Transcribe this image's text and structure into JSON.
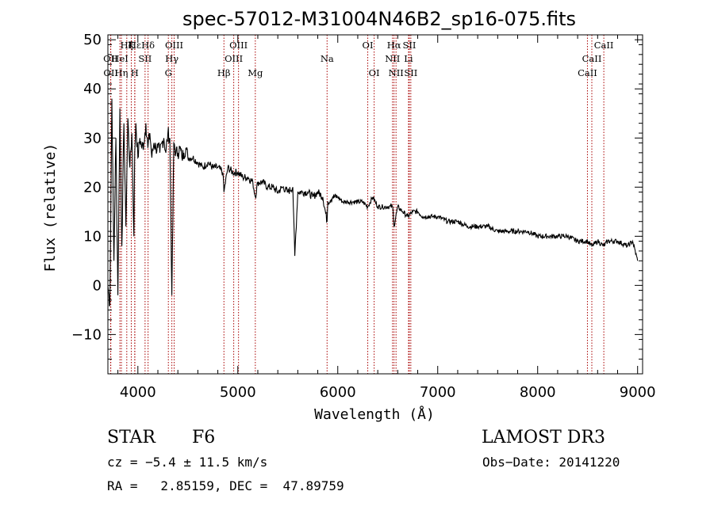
{
  "chart_data": {
    "type": "line",
    "title": "spec-57012-M31004N46B2_sp16-075.fits",
    "xlabel": "Wavelength (Å)",
    "ylabel": "Flux (relative)",
    "xlim": [
      3700,
      9050
    ],
    "ylim": [
      -18,
      51
    ],
    "xticks": [
      4000,
      5000,
      6000,
      7000,
      8000,
      9000
    ],
    "xtick_labels": [
      "4000",
      "5000",
      "6000",
      "7000",
      "8000",
      "9000"
    ],
    "yticks": [
      -10,
      0,
      10,
      20,
      30,
      40,
      50
    ],
    "ytick_labels": [
      "−10",
      "0",
      "10",
      "20",
      "30",
      "40",
      "50"
    ],
    "series": [
      {
        "name": "flux",
        "x": [
          3700,
          3720,
          3740,
          3760,
          3780,
          3800,
          3820,
          3840,
          3860,
          3880,
          3900,
          3920,
          3940,
          3960,
          3968,
          3980,
          4000,
          4020,
          4040,
          4060,
          4080,
          4100,
          4120,
          4140,
          4160,
          4180,
          4200,
          4220,
          4240,
          4260,
          4280,
          4300,
          4320,
          4340,
          4360,
          4380,
          4400,
          4420,
          4440,
          4460,
          4480,
          4500,
          4550,
          4600,
          4650,
          4700,
          4750,
          4800,
          4850,
          4861,
          4900,
          4950,
          5000,
          5050,
          5100,
          5150,
          5175,
          5200,
          5250,
          5300,
          5350,
          5400,
          5450,
          5500,
          5550,
          5570,
          5600,
          5650,
          5700,
          5750,
          5800,
          5850,
          5893,
          5900,
          5950,
          6000,
          6050,
          6100,
          6150,
          6200,
          6250,
          6300,
          6350,
          6400,
          6450,
          6500,
          6550,
          6563,
          6600,
          6650,
          6700,
          6750,
          6800,
          6850,
          6900,
          6950,
          7000,
          7100,
          7200,
          7300,
          7400,
          7500,
          7600,
          7700,
          7800,
          7900,
          8000,
          8100,
          8200,
          8300,
          8400,
          8500,
          8542,
          8600,
          8662,
          8700,
          8800,
          8900,
          8950,
          9000
        ],
        "y": [
          0,
          -4,
          38,
          5,
          30,
          -2,
          36,
          8,
          33,
          12,
          34,
          24,
          31,
          10,
          27,
          33,
          26,
          30,
          28,
          29,
          33,
          28,
          31,
          26,
          29,
          28,
          28,
          27,
          29,
          30,
          27,
          31,
          30,
          -2,
          29,
          27,
          27,
          28,
          26,
          27,
          28,
          26,
          26,
          25,
          24,
          25,
          24,
          24,
          23,
          19,
          24,
          23,
          23,
          22,
          22,
          21,
          18,
          21,
          21,
          20,
          20,
          19,
          20,
          19,
          20,
          6,
          19,
          19,
          19,
          18,
          19,
          18,
          13,
          17,
          18,
          18,
          17,
          17,
          17,
          17,
          17,
          16,
          18,
          16,
          16,
          16,
          16,
          12,
          16,
          15,
          14,
          15,
          15,
          14,
          14,
          14,
          14,
          13,
          13,
          12,
          12,
          12,
          11,
          11,
          11,
          11,
          10,
          10,
          10,
          10,
          9,
          9,
          8,
          9,
          8,
          9,
          9,
          8,
          9,
          5
        ]
      }
    ],
    "lines": [
      {
        "name": "Hζ",
        "wavelength": 3889,
        "row": 1,
        "label": "Hζ"
      },
      {
        "name": "Hε",
        "wavelength": 3970,
        "row": 1,
        "label": "Hε"
      },
      {
        "name": "K",
        "wavelength": 3934,
        "row": 1,
        "label": "K"
      },
      {
        "name": "Hδ",
        "wavelength": 4102,
        "row": 1,
        "label": "Hδ"
      },
      {
        "name": "OIII",
        "wavelength": 4363,
        "row": 1,
        "label": "OIII"
      },
      {
        "name": "OIII",
        "wavelength": 5007,
        "row": 1,
        "label": "OIII"
      },
      {
        "name": "OI",
        "wavelength": 6300,
        "row": 1,
        "label": "OI"
      },
      {
        "name": "Hα",
        "wavelength": 6563,
        "row": 1,
        "label": "Hα"
      },
      {
        "name": "SII",
        "wavelength": 6716,
        "row": 1,
        "label": "SII"
      },
      {
        "name": "CaII",
        "wavelength": 8662,
        "row": 1,
        "label": "CaII"
      },
      {
        "name": "OII",
        "wavelength": 3727,
        "row": 2,
        "label": "OII"
      },
      {
        "name": "HeI",
        "wavelength": 3820,
        "row": 2,
        "label": "HeI"
      },
      {
        "name": "SII",
        "wavelength": 4072,
        "row": 2,
        "label": "SII"
      },
      {
        "name": "Hγ",
        "wavelength": 4340,
        "row": 2,
        "label": "Hγ"
      },
      {
        "name": "OIII",
        "wavelength": 4959,
        "row": 2,
        "label": "OIII"
      },
      {
        "name": "Na",
        "wavelength": 5893,
        "row": 2,
        "label": "Na"
      },
      {
        "name": "NII",
        "wavelength": 6548,
        "row": 2,
        "label": "NII"
      },
      {
        "name": "Li",
        "wavelength": 6708,
        "row": 2,
        "label": "Li"
      },
      {
        "name": "CaII",
        "wavelength": 8542,
        "row": 2,
        "label": "CaII"
      },
      {
        "name": "OII",
        "wavelength": 3729,
        "row": 3,
        "label": "OII"
      },
      {
        "name": "Hη",
        "wavelength": 3835,
        "row": 3,
        "label": "Hη"
      },
      {
        "name": "H",
        "wavelength": 3968,
        "row": 3,
        "label": "H"
      },
      {
        "name": "G",
        "wavelength": 4305,
        "row": 3,
        "label": "G"
      },
      {
        "name": "Hβ",
        "wavelength": 4861,
        "row": 3,
        "label": "Hβ"
      },
      {
        "name": "Mg",
        "wavelength": 5175,
        "row": 3,
        "label": "Mg"
      },
      {
        "name": "OI",
        "wavelength": 6364,
        "row": 3,
        "label": "OI"
      },
      {
        "name": "NII",
        "wavelength": 6583,
        "row": 3,
        "label": "NII"
      },
      {
        "name": "SII",
        "wavelength": 6731,
        "row": 3,
        "label": "SII"
      },
      {
        "name": "CaII",
        "wavelength": 8498,
        "row": 3,
        "label": "CaII"
      }
    ],
    "line_color": "#a80000"
  },
  "info": {
    "class": "STAR",
    "subclass": "F6",
    "survey": "LAMOST DR3",
    "cz": "cz = −5.4 ± 11.5 km/s",
    "obs_date": "Obs−Date: 20141220",
    "radec": "RA =   2.85159, DEC =  47.89759"
  }
}
